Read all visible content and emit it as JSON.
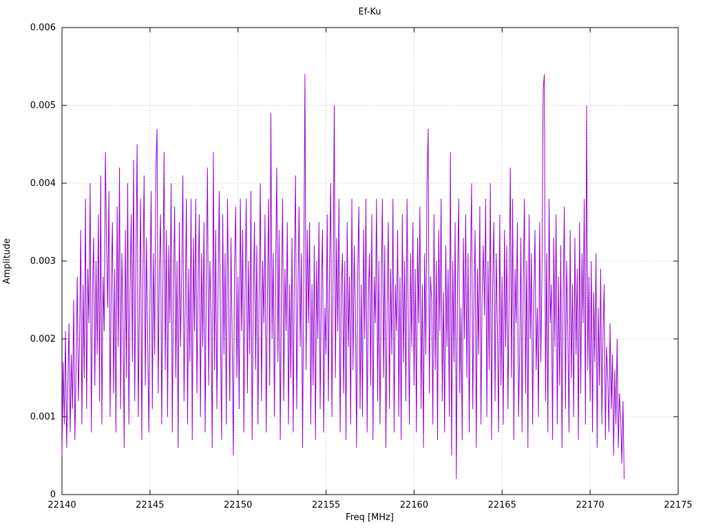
{
  "window": {
    "background": "#ffffff"
  },
  "chart_data": {
    "type": "line",
    "title": "Ef-Ku",
    "xlabel": "Freq [MHz]",
    "ylabel": "Amplitude",
    "xlim": [
      22140,
      22175
    ],
    "ylim": [
      0,
      0.006
    ],
    "x_ticks": [
      22140,
      22145,
      22150,
      22155,
      22160,
      22165,
      22170,
      22175
    ],
    "x_tick_labels": [
      "22140",
      "22145",
      "22150",
      "22155",
      "22160",
      "22165",
      "22170",
      "22175"
    ],
    "y_ticks": [
      0,
      0.001,
      0.002,
      0.003,
      0.004,
      0.005,
      0.006
    ],
    "y_tick_labels": [
      "0",
      "0.001",
      "0.002",
      "0.003",
      "0.004",
      "0.005",
      "0.006"
    ],
    "grid": "dotted",
    "grid_color": "#b3b3b3",
    "border_color": "#000000",
    "line_color": "#9400d3",
    "legend": "none",
    "data_x_start": 22140,
    "data_x_step": 0.0666667,
    "data_x_end": 22172,
    "amplitude_scale": 0.0001,
    "notable_peaks": [
      {
        "x": 22142.5,
        "y": 0.00445
      },
      {
        "x": 22145.4,
        "y": 0.00467
      },
      {
        "x": 22151.9,
        "y": 0.0049
      },
      {
        "x": 22153.8,
        "y": 0.0054
      },
      {
        "x": 22155.5,
        "y": 0.005
      },
      {
        "x": 22160.8,
        "y": 0.00465
      },
      {
        "x": 22162.1,
        "y": 0.0044
      },
      {
        "x": 22167.4,
        "y": 0.0054
      },
      {
        "x": 22169.8,
        "y": 0.005
      }
    ],
    "samples_scaled": [
      5,
      17,
      9,
      21,
      6,
      14,
      22,
      8,
      18,
      11,
      25,
      7,
      16,
      28,
      12,
      20,
      34,
      9,
      27,
      15,
      38,
      11,
      29,
      22,
      40,
      8,
      26,
      33,
      14,
      30,
      18,
      36,
      12,
      41,
      9,
      28,
      21,
      44,
      32,
      24,
      39,
      10,
      27,
      35,
      13,
      29,
      8,
      37,
      19,
      42,
      11,
      31,
      23,
      6,
      34,
      15,
      40,
      9,
      26,
      36,
      17,
      43,
      12,
      30,
      45,
      10,
      24,
      38,
      7,
      28,
      41,
      14,
      33,
      20,
      8,
      25,
      39,
      11,
      31,
      18,
      42,
      47,
      13,
      29,
      36,
      9,
      27,
      44,
      16,
      34,
      10,
      32,
      22,
      40,
      8,
      26,
      37,
      15,
      30,
      6,
      35,
      19,
      28,
      41,
      12,
      24,
      38,
      9,
      29,
      17,
      38,
      7,
      33,
      21,
      38,
      13,
      27,
      36,
      10,
      31,
      19,
      35,
      8,
      28,
      42,
      14,
      30,
      23,
      6,
      44,
      16,
      34,
      11,
      26,
      39,
      22,
      7,
      36,
      18,
      31,
      9,
      38,
      25,
      12,
      33,
      20,
      5,
      29,
      37,
      15,
      28,
      11,
      38,
      21,
      34,
      8,
      26,
      38,
      13,
      30,
      18,
      39,
      7,
      24,
      35,
      16,
      32,
      9,
      27,
      40,
      12,
      30,
      22,
      36,
      8,
      25,
      38,
      14,
      49,
      20,
      31,
      10,
      28,
      42,
      17,
      34,
      7,
      26,
      38,
      12,
      29,
      21,
      35,
      9,
      27,
      15,
      33,
      8,
      29,
      41,
      11,
      25,
      37,
      19,
      31,
      6,
      28,
      54,
      16,
      34,
      22,
      35,
      9,
      27,
      14,
      32,
      7,
      30,
      20,
      35,
      11,
      26,
      34,
      8,
      24,
      18,
      36,
      12,
      29,
      40,
      10,
      27,
      50,
      15,
      33,
      21,
      38,
      8,
      26,
      31,
      13,
      30,
      7,
      35,
      19,
      28,
      9,
      38,
      16,
      32,
      24,
      6,
      29,
      37,
      11,
      27,
      10,
      34,
      20,
      38,
      8,
      25,
      31,
      14,
      36,
      7,
      28,
      22,
      38,
      12,
      30,
      9,
      26,
      38,
      15,
      32,
      6,
      24,
      35,
      11,
      29,
      18,
      38,
      8,
      27,
      21,
      34,
      10,
      28,
      7,
      36,
      17,
      30,
      12,
      38,
      23,
      9,
      31,
      19,
      35,
      14,
      29,
      8,
      33,
      22,
      37,
      11,
      27,
      6,
      31,
      18,
      40,
      47,
      13,
      28,
      25,
      9,
      36,
      16,
      30,
      7,
      34,
      21,
      38,
      12,
      26,
      8,
      32,
      19,
      29,
      10,
      44,
      5,
      30,
      17,
      35,
      2,
      27,
      38,
      13,
      24,
      7,
      33,
      20,
      36,
      15,
      31,
      8,
      28,
      40,
      11,
      25,
      34,
      6,
      29,
      18,
      37,
      9,
      26,
      32,
      23,
      38,
      10,
      30,
      16,
      40,
      7,
      27,
      35,
      12,
      31,
      21,
      8,
      36,
      14,
      28,
      9,
      34,
      19,
      32,
      11,
      26,
      42,
      15,
      38,
      7,
      29,
      22,
      35,
      10,
      18,
      33,
      8,
      27,
      38,
      13,
      30,
      6,
      36,
      20,
      31,
      9,
      25,
      34,
      16,
      24,
      10,
      35,
      17,
      29,
      52,
      54,
      12,
      31,
      8,
      38,
      22,
      27,
      7,
      33,
      19,
      36,
      9,
      28,
      14,
      32,
      6,
      25,
      37,
      11,
      30,
      21,
      8,
      34,
      15,
      27,
      10,
      33,
      18,
      29,
      7,
      35,
      13,
      31,
      22,
      38,
      9,
      50,
      16,
      28,
      12,
      30,
      8,
      26,
      17,
      31,
      6,
      24,
      14,
      29,
      9,
      21,
      27,
      7,
      19,
      15,
      8,
      22,
      11,
      18,
      5,
      16,
      9,
      20,
      6,
      13,
      10,
      4,
      12,
      2
    ]
  }
}
